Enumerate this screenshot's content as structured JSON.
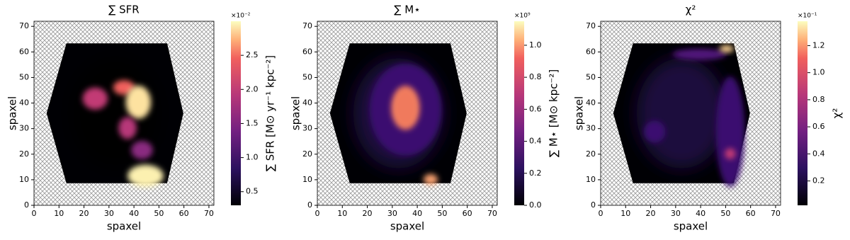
{
  "chart_data": [
    {
      "type": "heatmap",
      "title": "∑ SFR",
      "xlabel": "spaxel",
      "ylabel": "spaxel",
      "xlim": [
        0,
        72
      ],
      "ylim": [
        0,
        72
      ],
      "xticks": [
        0,
        10,
        20,
        30,
        40,
        50,
        60,
        70
      ],
      "yticks": [
        0,
        10,
        20,
        30,
        40,
        50,
        60,
        70
      ],
      "colormap": "magma",
      "colorbar_label": "∑ SFR [M⊙ yr⁻¹ kpc⁻²]",
      "colorbar_offset": "×10⁻²",
      "colorbar_lim": [
        0.3,
        3.0
      ],
      "colorbar_ticks": [
        0.5,
        {
          "value": 1,
          "label": "1.0"
        },
        1.5,
        {
          "value": 2,
          "label": "2.0"
        },
        2.5
      ]
    },
    {
      "type": "heatmap",
      "title": "∑ M⋆",
      "xlabel": "spaxel",
      "ylabel": "spaxel",
      "xlim": [
        0,
        72
      ],
      "ylim": [
        0,
        72
      ],
      "xticks": [
        0,
        10,
        20,
        30,
        40,
        50,
        60,
        70
      ],
      "yticks": [
        0,
        10,
        20,
        30,
        40,
        50,
        60,
        70
      ],
      "colormap": "magma",
      "colorbar_label": "∑ M⋆ [M⊙ kpc⁻²]",
      "colorbar_offset": "×10⁹",
      "colorbar_lim": [
        0,
        1.15
      ],
      "colorbar_ticks": [
        {
          "value": 0,
          "label": "0.0"
        },
        0.2,
        0.4,
        0.6,
        0.8,
        {
          "value": 1,
          "label": "1.0"
        }
      ]
    },
    {
      "type": "heatmap",
      "title": "χ²",
      "xlabel": "spaxel",
      "ylabel": "spaxel",
      "xlim": [
        0,
        72
      ],
      "ylim": [
        0,
        72
      ],
      "xticks": [
        0,
        10,
        20,
        30,
        40,
        50,
        60,
        70
      ],
      "yticks": [
        0,
        10,
        20,
        30,
        40,
        50,
        60,
        70
      ],
      "colormap": "magma",
      "colorbar_label": "χ²",
      "colorbar_offset": "×10⁻¹",
      "colorbar_lim": [
        0.02,
        1.38
      ],
      "colorbar_ticks": [
        0.2,
        0.4,
        0.6,
        0.8,
        {
          "value": 1,
          "label": "1.0"
        },
        1.2
      ]
    }
  ]
}
